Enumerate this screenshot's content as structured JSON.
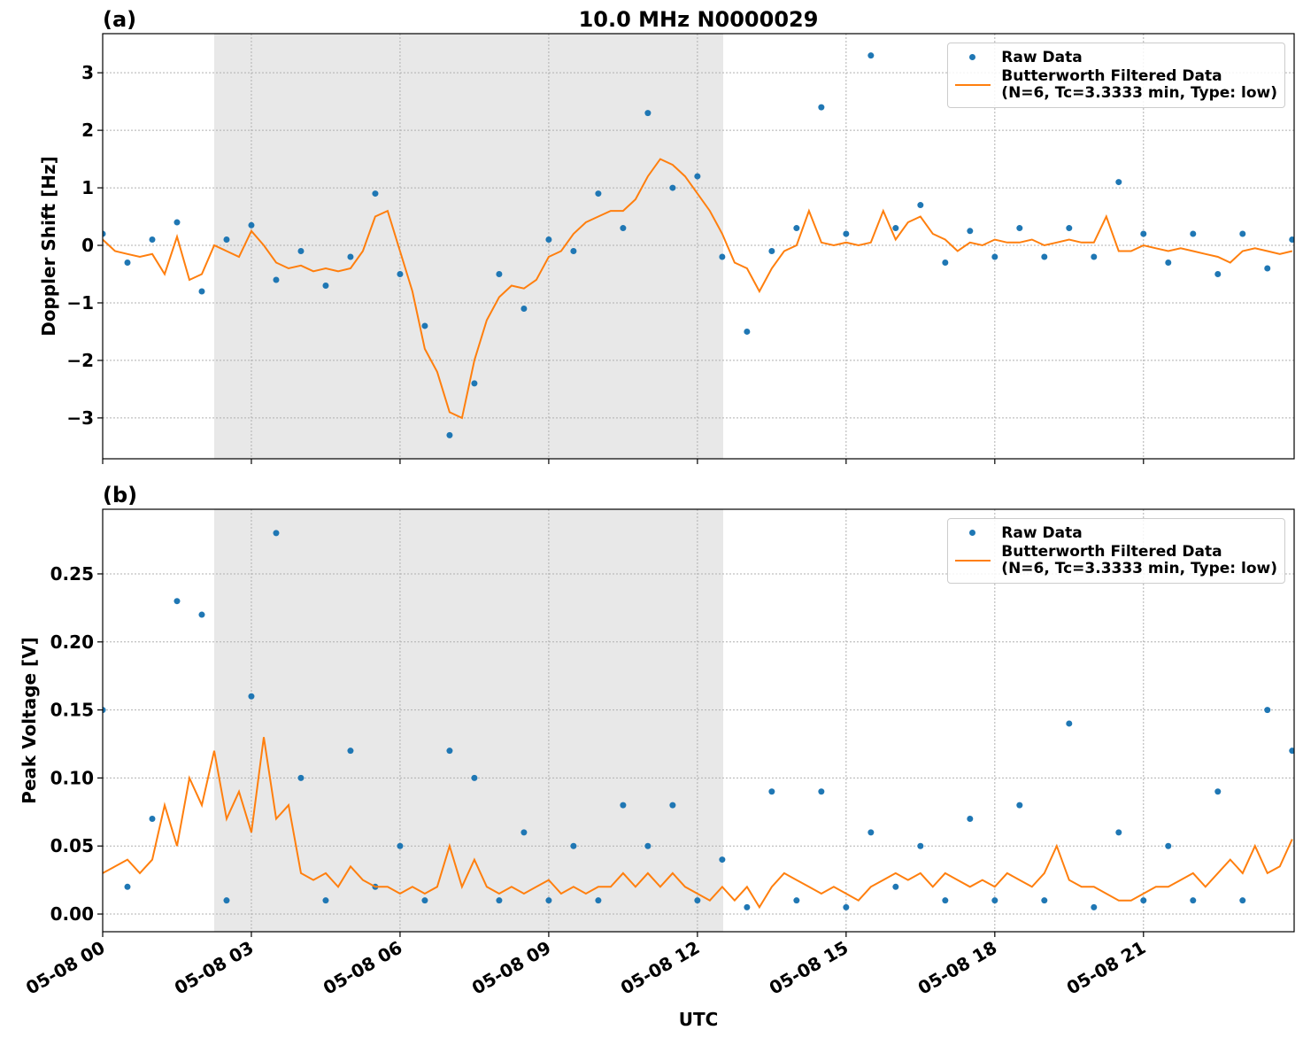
{
  "chart_data": [
    {
      "type": "line",
      "panel_label": "(a)",
      "title": "10.0 MHz N0000029",
      "ylabel": "Doppler Shift [Hz]",
      "xlim": [
        0,
        24.04
      ],
      "xticks": [
        0,
        3,
        6,
        9,
        12,
        15,
        18,
        21
      ],
      "ylim": [
        -3.71,
        3.68
      ],
      "yticks": [
        {
          "value": -3,
          "label": "−3"
        },
        {
          "value": -2,
          "label": "−2"
        },
        {
          "value": -1,
          "label": "−1"
        },
        0,
        1,
        2,
        3
      ],
      "grid": true,
      "legend": "upper right",
      "shade": {
        "x": [
          2.25,
          12.52
        ],
        "color": "#e8e8e8"
      },
      "series": [
        {
          "name": "Raw Data",
          "color": "#1f77b4",
          "marker": "dot",
          "x": [
            0,
            0.5,
            1,
            1.5,
            2,
            2.5,
            3,
            3.5,
            4,
            4.5,
            5,
            5.5,
            6,
            6.5,
            7,
            7.5,
            8,
            8.5,
            9,
            9.5,
            10,
            10.5,
            11,
            11.5,
            12,
            12.5,
            13,
            13.5,
            14,
            14.5,
            15,
            15.5,
            16,
            16.5,
            17,
            17.5,
            18,
            18.5,
            19,
            19.5,
            20,
            20.5,
            21,
            21.5,
            22,
            22.5,
            23,
            23.5,
            24
          ],
          "values": [
            0.2,
            -0.3,
            0.1,
            0.4,
            -0.8,
            0.1,
            0.35,
            -0.6,
            -0.1,
            -0.7,
            -0.2,
            0.9,
            -0.5,
            -1.4,
            -3.3,
            -2.4,
            -0.5,
            -1.1,
            0.1,
            -0.1,
            0.9,
            0.3,
            2.3,
            1.0,
            1.2,
            -0.2,
            -1.5,
            -0.1,
            0.3,
            2.4,
            0.2,
            3.3,
            0.3,
            0.7,
            -0.3,
            0.25,
            -0.2,
            0.3,
            -0.2,
            0.3,
            -0.2,
            1.1,
            0.2,
            -0.3,
            0.2,
            -0.5,
            0.2,
            -0.4,
            0.1
          ]
        },
        {
          "name": "Butterworth Filtered Data\n(N=6, Tc=3.3333 min, Type: low)",
          "color": "#ff7f0e",
          "marker": "line",
          "x": [
            0,
            0.25,
            0.5,
            0.75,
            1,
            1.25,
            1.5,
            1.75,
            2,
            2.25,
            2.5,
            2.75,
            3,
            3.25,
            3.5,
            3.75,
            4,
            4.25,
            4.5,
            4.75,
            5,
            5.25,
            5.5,
            5.75,
            6,
            6.25,
            6.5,
            6.75,
            7,
            7.25,
            7.5,
            7.75,
            8,
            8.25,
            8.5,
            8.75,
            9,
            9.25,
            9.5,
            9.75,
            10,
            10.25,
            10.5,
            10.75,
            11,
            11.25,
            11.5,
            11.75,
            12,
            12.25,
            12.5,
            12.75,
            13,
            13.25,
            13.5,
            13.75,
            14,
            14.25,
            14.5,
            14.75,
            15,
            15.25,
            15.5,
            15.75,
            16,
            16.25,
            16.5,
            16.75,
            17,
            17.25,
            17.5,
            17.75,
            18,
            18.25,
            18.5,
            18.75,
            19,
            19.25,
            19.5,
            19.75,
            20,
            20.25,
            20.5,
            20.75,
            21,
            21.25,
            21.5,
            21.75,
            22,
            22.25,
            22.5,
            22.75,
            23,
            23.25,
            23.5,
            23.75,
            24
          ],
          "values": [
            0.1,
            -0.1,
            -0.15,
            -0.2,
            -0.15,
            -0.5,
            0.15,
            -0.6,
            -0.5,
            0.0,
            -0.1,
            -0.2,
            0.25,
            0.0,
            -0.3,
            -0.4,
            -0.35,
            -0.45,
            -0.4,
            -0.45,
            -0.4,
            -0.1,
            0.5,
            0.6,
            -0.1,
            -0.8,
            -1.8,
            -2.2,
            -2.9,
            -3.0,
            -2.0,
            -1.3,
            -0.9,
            -0.7,
            -0.75,
            -0.6,
            -0.2,
            -0.1,
            0.2,
            0.4,
            0.5,
            0.6,
            0.6,
            0.8,
            1.2,
            1.5,
            1.4,
            1.2,
            0.9,
            0.6,
            0.2,
            -0.3,
            -0.4,
            -0.8,
            -0.4,
            -0.1,
            0.0,
            0.6,
            0.05,
            0.0,
            0.05,
            0.0,
            0.05,
            0.6,
            0.1,
            0.4,
            0.5,
            0.2,
            0.1,
            -0.1,
            0.05,
            0.0,
            0.1,
            0.05,
            0.05,
            0.1,
            0.0,
            0.05,
            0.1,
            0.05,
            0.05,
            0.5,
            -0.1,
            -0.1,
            0.0,
            -0.05,
            -0.1,
            -0.05,
            -0.1,
            -0.15,
            -0.2,
            -0.3,
            -0.1,
            -0.05,
            -0.1,
            -0.15,
            -0.1
          ]
        }
      ]
    },
    {
      "type": "line",
      "panel_label": "(b)",
      "ylabel": "Peak Voltage [V]",
      "xlabel": "UTC",
      "xlim": [
        0,
        24.04
      ],
      "xticks": [
        {
          "value": 0,
          "label": "05-08 00"
        },
        {
          "value": 3,
          "label": "05-08 03"
        },
        {
          "value": 6,
          "label": "05-08 06"
        },
        {
          "value": 9,
          "label": "05-08 09"
        },
        {
          "value": 12,
          "label": "05-08 12"
        },
        {
          "value": 15,
          "label": "05-08 15"
        },
        {
          "value": 18,
          "label": "05-08 18"
        },
        {
          "value": 21,
          "label": "05-08 21"
        }
      ],
      "ylim": [
        -0.013,
        0.2975
      ],
      "yticks": [
        {
          "value": 0,
          "label": "0.00"
        },
        {
          "value": 0.05,
          "label": "0.05"
        },
        {
          "value": 0.1,
          "label": "0.10"
        },
        {
          "value": 0.15,
          "label": "0.15"
        },
        {
          "value": 0.2,
          "label": "0.20"
        },
        {
          "value": 0.25,
          "label": "0.25"
        }
      ],
      "grid": true,
      "legend": "upper right",
      "shade": {
        "x": [
          2.25,
          12.52
        ],
        "color": "#e8e8e8"
      },
      "series": [
        {
          "name": "Raw Data",
          "color": "#1f77b4",
          "marker": "dot",
          "x": [
            0,
            0.5,
            1,
            1.5,
            2,
            2.5,
            3,
            3.5,
            4,
            4.5,
            5,
            5.5,
            6,
            6.5,
            7,
            7.5,
            8,
            8.5,
            9,
            9.5,
            10,
            10.5,
            11,
            11.5,
            12,
            12.5,
            13,
            13.5,
            14,
            14.5,
            15,
            15.5,
            16,
            16.5,
            17,
            17.5,
            18,
            18.5,
            19,
            19.5,
            20,
            20.5,
            21,
            21.5,
            22,
            22.5,
            23,
            23.5,
            24
          ],
          "values": [
            0.15,
            0.02,
            0.07,
            0.23,
            0.22,
            0.01,
            0.16,
            0.28,
            0.1,
            0.01,
            0.12,
            0.02,
            0.05,
            0.01,
            0.12,
            0.1,
            0.01,
            0.06,
            0.01,
            0.05,
            0.01,
            0.08,
            0.05,
            0.08,
            0.01,
            0.04,
            0.005,
            0.09,
            0.01,
            0.09,
            0.005,
            0.06,
            0.02,
            0.05,
            0.01,
            0.07,
            0.01,
            0.08,
            0.01,
            0.14,
            0.005,
            0.06,
            0.01,
            0.05,
            0.01,
            0.09,
            0.01,
            0.15,
            0.12
          ]
        },
        {
          "name": "Butterworth Filtered Data\n(N=6, Tc=3.3333 min, Type: low)",
          "color": "#ff7f0e",
          "marker": "line",
          "x": [
            0,
            0.25,
            0.5,
            0.75,
            1,
            1.25,
            1.5,
            1.75,
            2,
            2.25,
            2.5,
            2.75,
            3,
            3.25,
            3.5,
            3.75,
            4,
            4.25,
            4.5,
            4.75,
            5,
            5.25,
            5.5,
            5.75,
            6,
            6.25,
            6.5,
            6.75,
            7,
            7.25,
            7.5,
            7.75,
            8,
            8.25,
            8.5,
            8.75,
            9,
            9.25,
            9.5,
            9.75,
            10,
            10.25,
            10.5,
            10.75,
            11,
            11.25,
            11.5,
            11.75,
            12,
            12.25,
            12.5,
            12.75,
            13,
            13.25,
            13.5,
            13.75,
            14,
            14.25,
            14.5,
            14.75,
            15,
            15.25,
            15.5,
            15.75,
            16,
            16.25,
            16.5,
            16.75,
            17,
            17.25,
            17.5,
            17.75,
            18,
            18.25,
            18.5,
            18.75,
            19,
            19.25,
            19.5,
            19.75,
            20,
            20.25,
            20.5,
            20.75,
            21,
            21.25,
            21.5,
            21.75,
            22,
            22.25,
            22.5,
            22.75,
            23,
            23.25,
            23.5,
            23.75,
            24
          ],
          "values": [
            0.03,
            0.035,
            0.04,
            0.03,
            0.04,
            0.08,
            0.05,
            0.1,
            0.08,
            0.12,
            0.07,
            0.09,
            0.06,
            0.13,
            0.07,
            0.08,
            0.03,
            0.025,
            0.03,
            0.02,
            0.035,
            0.025,
            0.02,
            0.02,
            0.015,
            0.02,
            0.015,
            0.02,
            0.05,
            0.02,
            0.04,
            0.02,
            0.015,
            0.02,
            0.015,
            0.02,
            0.025,
            0.015,
            0.02,
            0.015,
            0.02,
            0.02,
            0.03,
            0.02,
            0.03,
            0.02,
            0.03,
            0.02,
            0.015,
            0.01,
            0.02,
            0.01,
            0.02,
            0.005,
            0.02,
            0.03,
            0.025,
            0.02,
            0.015,
            0.02,
            0.015,
            0.01,
            0.02,
            0.025,
            0.03,
            0.025,
            0.03,
            0.02,
            0.03,
            0.025,
            0.02,
            0.025,
            0.02,
            0.03,
            0.025,
            0.02,
            0.03,
            0.05,
            0.025,
            0.02,
            0.02,
            0.015,
            0.01,
            0.01,
            0.015,
            0.02,
            0.02,
            0.025,
            0.03,
            0.02,
            0.03,
            0.04,
            0.03,
            0.05,
            0.03,
            0.035,
            0.055
          ]
        }
      ]
    }
  ]
}
